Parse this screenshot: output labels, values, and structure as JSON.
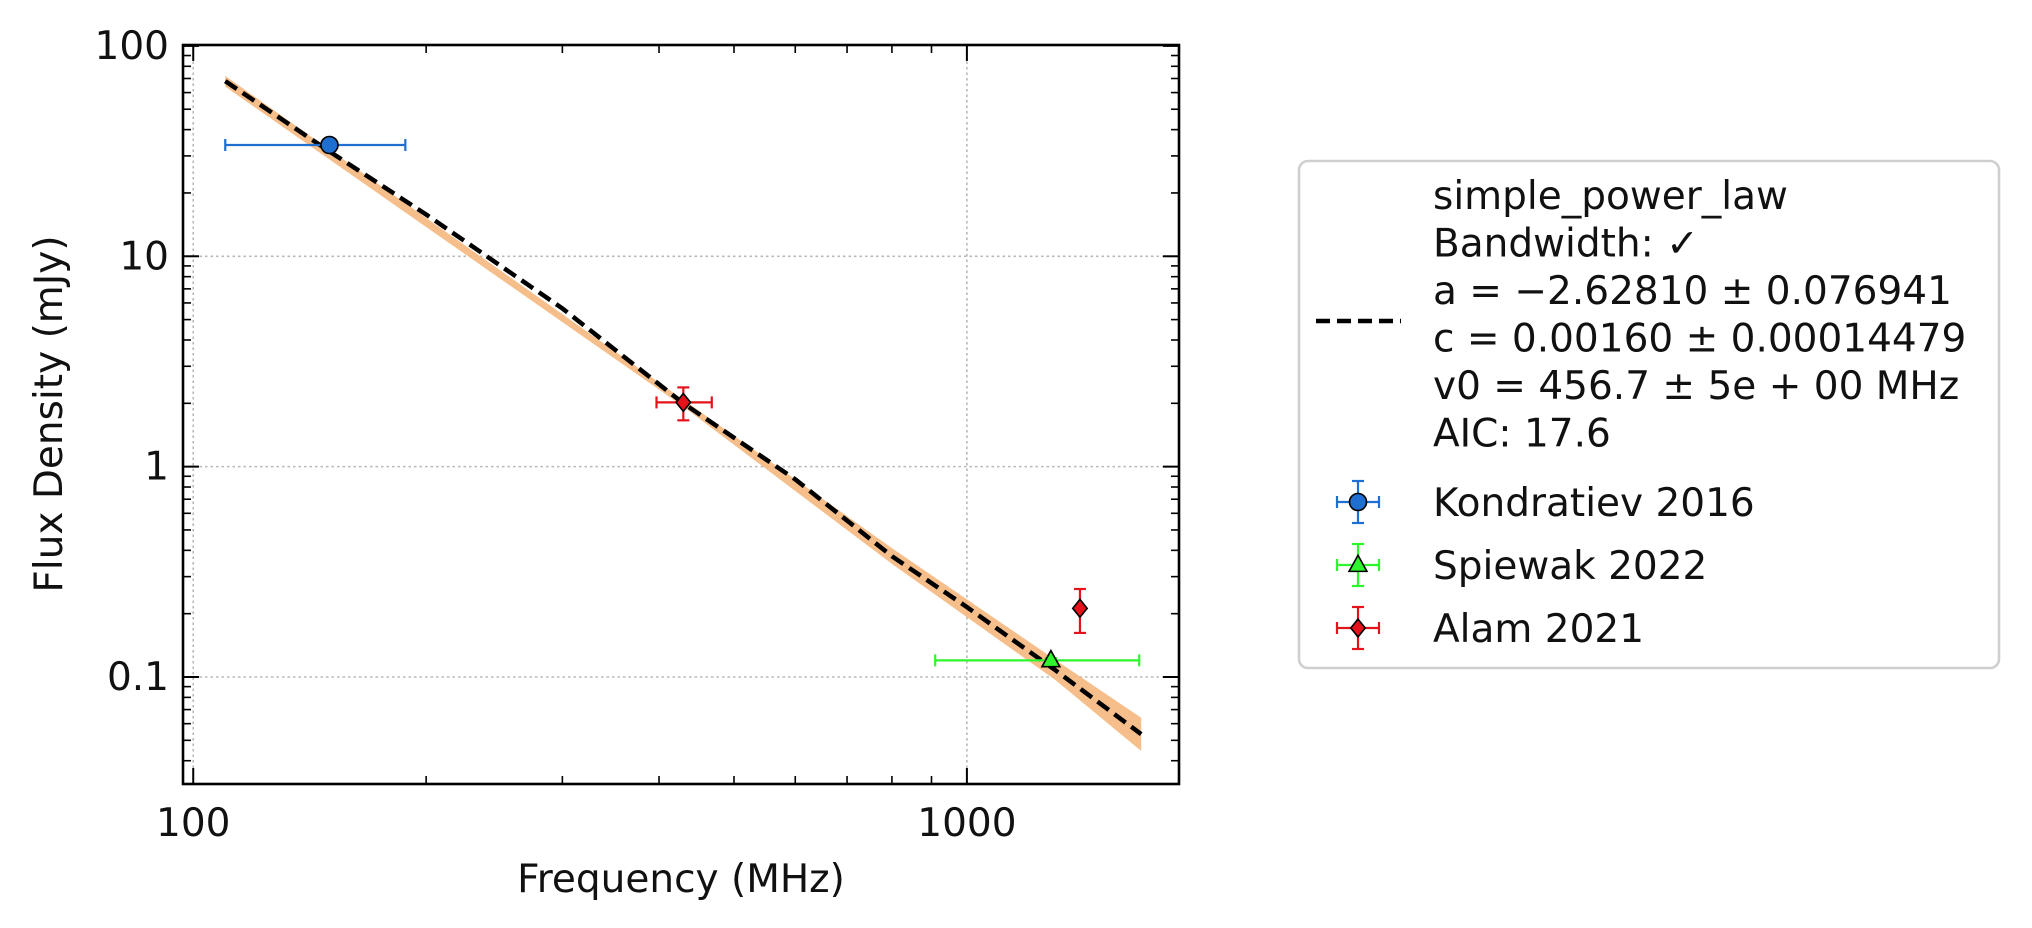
{
  "chart_data": {
    "type": "scatter",
    "title": "",
    "xlabel": "Frequency (MHz)",
    "ylabel": "Flux Density (mJy)",
    "xscale": "log",
    "yscale": "log",
    "xlim": [
      97,
      1880
    ],
    "ylim": [
      0.031,
      101
    ],
    "x_ticks": [
      {
        "value": 100,
        "label": "100"
      },
      {
        "value": 1000,
        "label": "1000"
      }
    ],
    "y_ticks": [
      {
        "value": 0.1,
        "label": "0.1"
      },
      {
        "value": 1,
        "label": "1"
      },
      {
        "value": 10,
        "label": "10"
      },
      {
        "value": 100,
        "label": "100"
      }
    ],
    "grid": true,
    "legend_position": "outside-right",
    "fit": {
      "model_name": "simple_power_law",
      "legend_lines": [
        "simple_power_law",
        "Bandwidth: ✓",
        "a = −2.62810 ± 0.076941",
        "c = 0.00160 ± 0.00014479",
        "v0 = 456.7 ± 5e + 00 MHz",
        "AIC: 17.6"
      ],
      "a": -2.6281,
      "c": 0.0016,
      "v0": 456.7,
      "x_range": [
        110,
        1680
      ],
      "curve": [
        {
          "x": 110,
          "y": 68
        },
        {
          "x": 150,
          "y": 31.5
        },
        {
          "x": 200,
          "y": 15.8
        },
        {
          "x": 300,
          "y": 5.65
        },
        {
          "x": 430,
          "y": 2.0
        },
        {
          "x": 600,
          "y": 0.87
        },
        {
          "x": 800,
          "y": 0.375
        },
        {
          "x": 1000,
          "y": 0.215
        },
        {
          "x": 1300,
          "y": 0.108
        },
        {
          "x": 1680,
          "y": 0.0535
        }
      ],
      "band": [
        {
          "x": 110,
          "y_low": 64,
          "y_high": 72
        },
        {
          "x": 430,
          "y_low": 1.93,
          "y_high": 2.08
        },
        {
          "x": 800,
          "y_low": 0.345,
          "y_high": 0.41
        },
        {
          "x": 1300,
          "y_low": 0.097,
          "y_high": 0.121
        },
        {
          "x": 1680,
          "y_low": 0.0445,
          "y_high": 0.064
        }
      ],
      "line_color": "#000000",
      "band_color": "#f5b77d"
    },
    "series": [
      {
        "name": "Kondratiev 2016",
        "marker": "circle",
        "color": "#1f6fd0",
        "points": [
          {
            "x": 150,
            "y": 33.8,
            "x_err_low": 40,
            "x_err_high": 38,
            "y_err_low": 1.0,
            "y_err_high": 1.0
          }
        ]
      },
      {
        "name": "Spiewak 2022",
        "marker": "triangle",
        "color": "#2ff52f",
        "points": [
          {
            "x": 1284,
            "y": 0.12,
            "x_err_low": 374,
            "x_err_high": 386,
            "y_err_low": 0.003,
            "y_err_high": 0.003
          }
        ]
      },
      {
        "name": "Alam 2021",
        "marker": "diamond",
        "color": "#e3121b",
        "points": [
          {
            "x": 430,
            "y": 2.02,
            "x_err_low": 33,
            "x_err_high": 38,
            "y_err_low": 0.36,
            "y_err_high": 0.36
          },
          {
            "x": 1400,
            "y": 0.212,
            "x_err_low": 0,
            "x_err_high": 0,
            "y_err_low": 0.05,
            "y_err_high": 0.05
          }
        ]
      }
    ]
  }
}
